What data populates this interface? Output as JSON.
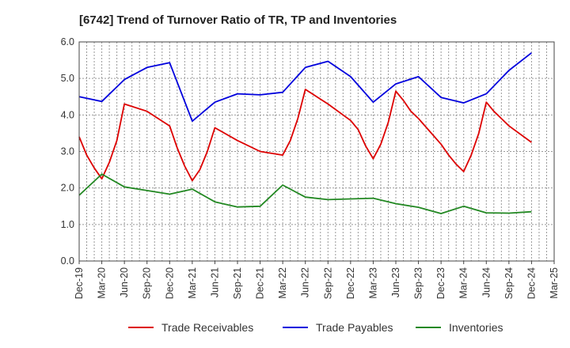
{
  "chart_data": {
    "type": "line",
    "title": "[6742]  Trend of Turnover Ratio of TR, TP and Inventories",
    "xlabel": "",
    "ylabel": "",
    "ylim": [
      0,
      6
    ],
    "yticks": [
      "0.0",
      "1.0",
      "2.0",
      "3.0",
      "4.0",
      "5.0",
      "6.0"
    ],
    "xtick_labels": [
      "Dec-19",
      "Mar-20",
      "Jun-20",
      "Sep-20",
      "Dec-20",
      "Mar-21",
      "Jun-21",
      "Sep-21",
      "Dec-21",
      "Mar-22",
      "Jun-22",
      "Sep-22",
      "Dec-22",
      "Mar-23",
      "Jun-23",
      "Sep-23",
      "Dec-23",
      "Mar-24",
      "Jun-24",
      "Sep-24",
      "Dec-24",
      "Mar-25"
    ],
    "grid": true,
    "legend_position": "bottom",
    "x": [
      "Dec-19",
      "Jan-20",
      "Feb-20",
      "Mar-20",
      "Apr-20",
      "May-20",
      "Jun-20",
      "Sep-20",
      "Dec-20",
      "Jan-21",
      "Feb-21",
      "Mar-21",
      "Apr-21",
      "May-21",
      "Jun-21",
      "Sep-21",
      "Dec-21",
      "Mar-22",
      "Apr-22",
      "May-22",
      "Jun-22",
      "Sep-22",
      "Dec-22",
      "Jan-23",
      "Feb-23",
      "Mar-23",
      "Apr-23",
      "May-23",
      "Jun-23",
      "Jul-23",
      "Aug-23",
      "Sep-23",
      "Dec-23",
      "Jan-24",
      "Feb-24",
      "Mar-24",
      "Apr-24",
      "May-24",
      "Jun-24",
      "Jul-24",
      "Aug-24",
      "Sep-24",
      "Dec-24"
    ],
    "series": [
      {
        "name": "Trade Receivables",
        "color": "#dd0000",
        "values": [
          3.4,
          2.9,
          2.55,
          2.25,
          2.7,
          3.3,
          4.3,
          4.1,
          3.7,
          3.1,
          2.6,
          2.2,
          2.5,
          3.0,
          3.65,
          3.3,
          3.0,
          2.9,
          3.3,
          3.9,
          4.7,
          4.3,
          3.85,
          3.6,
          3.15,
          2.8,
          3.2,
          3.8,
          4.65,
          4.4,
          4.1,
          3.9,
          3.2,
          2.9,
          2.65,
          2.45,
          2.9,
          3.5,
          4.35,
          4.1,
          3.9,
          3.7,
          3.25
        ]
      },
      {
        "name": "Trade Payables",
        "color": "#0000dd",
        "values": [
          4.5,
          null,
          null,
          4.37,
          null,
          null,
          4.97,
          5.3,
          5.43,
          null,
          null,
          3.83,
          null,
          null,
          4.35,
          4.58,
          4.55,
          4.62,
          null,
          null,
          5.3,
          5.47,
          5.05,
          null,
          null,
          4.35,
          null,
          null,
          4.85,
          null,
          null,
          5.05,
          4.48,
          null,
          null,
          4.33,
          null,
          null,
          4.58,
          null,
          null,
          5.22,
          5.7
        ]
      },
      {
        "name": "Inventories",
        "color": "#228822",
        "values": [
          1.8,
          null,
          null,
          2.38,
          null,
          null,
          2.03,
          1.93,
          1.83,
          null,
          null,
          1.97,
          null,
          null,
          1.62,
          1.48,
          1.5,
          2.08,
          null,
          null,
          1.75,
          1.68,
          1.7,
          null,
          null,
          1.72,
          null,
          null,
          1.57,
          null,
          null,
          1.47,
          1.3,
          null,
          null,
          1.5,
          null,
          null,
          1.32,
          null,
          null,
          1.31,
          1.35
        ]
      }
    ]
  }
}
